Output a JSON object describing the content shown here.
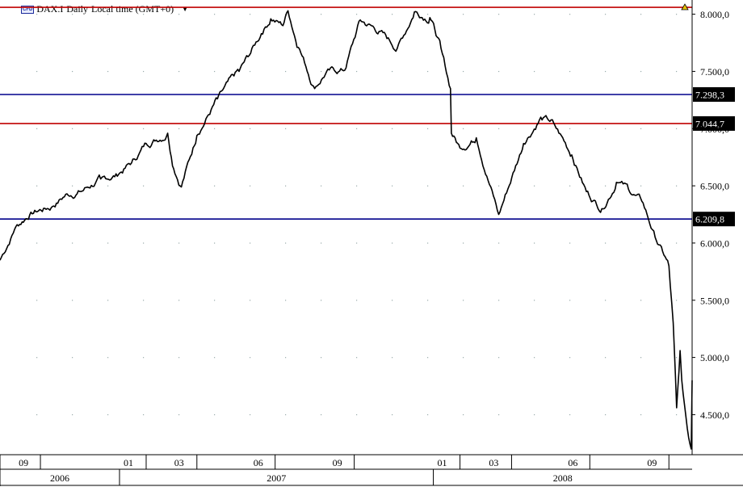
{
  "header": {
    "badge": "CFD",
    "symbol": "DAX.I",
    "interval": "Daily",
    "timezone": "Local time (GMT+0)",
    "dropdown_icon": "caret-down-icon"
  },
  "colors": {
    "price_line": "#000000",
    "support_blue": "#00008B",
    "resistance_red": "#C00000",
    "label_bg": "#000000",
    "label_text": "#ffffff"
  },
  "chart_data": {
    "type": "line",
    "title": "DAX.I Daily Local time (GMT+0)",
    "xlabel": "",
    "ylabel": "",
    "ylim": [
      4150,
      8110
    ],
    "y_ticks": [
      "4.500,0",
      "5.000,0",
      "5.500,0",
      "6.000,0",
      "6.500,0",
      "7.000,0",
      "7.500,0",
      "8.000,0"
    ],
    "y_tick_values": [
      4500,
      5000,
      5500,
      6000,
      6500,
      7000,
      7500,
      8000
    ],
    "x_ticks": [
      "09",
      "01",
      "03",
      "06",
      "09",
      "01",
      "03",
      "06",
      "09"
    ],
    "x_tick_dates": [
      "2006-09-01",
      "2007-01-01",
      "2007-03-01",
      "2007-06-01",
      "2007-09-01",
      "2008-01-01",
      "2008-03-01",
      "2008-06-01",
      "2008-09-01"
    ],
    "month_boundaries": [
      "2006-10-01",
      "2007-02-01",
      "2007-04-01",
      "2007-07-01",
      "2007-10-01",
      "2008-02-01",
      "2008-04-01",
      "2008-07-01",
      "2008-10-01"
    ],
    "years": [
      {
        "label": "2006",
        "from": "2006-08-15",
        "to": "2007-01-01"
      },
      {
        "label": "2007",
        "from": "2007-01-01",
        "to": "2008-01-01"
      },
      {
        "label": "2008",
        "from": "2008-01-01",
        "to": "2008-10-28"
      }
    ],
    "x_range": [
      "2006-08-15",
      "2008-10-28"
    ],
    "grid": "dotted",
    "horizontal_levels": [
      {
        "value": 8060,
        "label": "",
        "color": "red"
      },
      {
        "value": 7298.3,
        "label": "7.298,3",
        "color": "blue"
      },
      {
        "value": 7044.7,
        "label": "7.044,7",
        "color": "red"
      },
      {
        "value": 6209.8,
        "label": "6.209,8",
        "color": "blue"
      }
    ],
    "series": [
      {
        "x": [
          "2006-08-15",
          "2006-09-01",
          "2006-09-20",
          "2006-10-15",
          "2006-11-01",
          "2006-11-20",
          "2006-12-10",
          "2006-12-31",
          "2007-01-15",
          "2007-02-01",
          "2007-02-26",
          "2007-03-05",
          "2007-03-14",
          "2007-04-01",
          "2007-04-25",
          "2007-05-20",
          "2007-06-01",
          "2007-06-15",
          "2007-06-26",
          "2007-07-10",
          "2007-07-16",
          "2007-07-28",
          "2007-08-16",
          "2007-08-30",
          "2007-09-20",
          "2007-10-08",
          "2007-10-30",
          "2007-11-20",
          "2007-12-10",
          "2007-12-28",
          "2008-01-10",
          "2008-01-21",
          "2008-01-22",
          "2008-02-01",
          "2008-02-20",
          "2008-03-17",
          "2008-04-15",
          "2008-05-05",
          "2008-05-20",
          "2008-06-10",
          "2008-06-27",
          "2008-07-15",
          "2008-08-01",
          "2008-08-15",
          "2008-09-01",
          "2008-09-15",
          "2008-10-01",
          "2008-10-06",
          "2008-10-10",
          "2008-10-14",
          "2008-10-16",
          "2008-10-24",
          "2008-10-27",
          "2008-10-28"
        ],
        "values": [
          5850,
          6120,
          6270,
          6320,
          6430,
          6460,
          6560,
          6600,
          6700,
          6870,
          6960,
          6650,
          6490,
          6940,
          7260,
          7500,
          7640,
          7830,
          7960,
          7900,
          8030,
          7710,
          7350,
          7500,
          7510,
          7950,
          7850,
          7700,
          8020,
          7970,
          7700,
          7350,
          6960,
          6830,
          6920,
          6250,
          6870,
          7100,
          7050,
          6770,
          6450,
          6300,
          6530,
          6470,
          6350,
          6050,
          5800,
          5300,
          4560,
          5060,
          4800,
          4300,
          4200,
          4800
        ]
      }
    ]
  },
  "axes": {
    "date_axis_icon": "expand-icon"
  }
}
